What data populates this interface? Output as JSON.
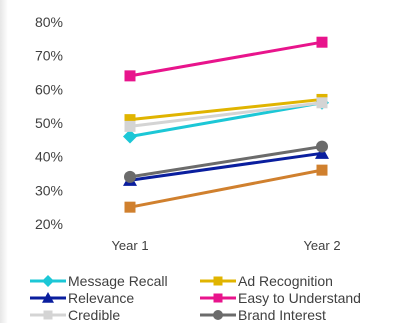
{
  "chart_data": {
    "type": "line",
    "categories": [
      "Year 1",
      "Year 2"
    ],
    "ylim": [
      0.2,
      0.8
    ],
    "yticks": [
      "20%",
      "30%",
      "40%",
      "50%",
      "60%",
      "70%",
      "80%"
    ],
    "grid": false,
    "legend_position": "bottom",
    "series": [
      {
        "name": "Message Recall",
        "values": [
          0.46,
          0.56
        ],
        "color": "#1CC7D6",
        "marker": "diamond"
      },
      {
        "name": "Ad Recognition",
        "values": [
          0.51,
          0.57
        ],
        "color": "#E0B400",
        "marker": "square"
      },
      {
        "name": "Relevance",
        "values": [
          0.33,
          0.41
        ],
        "color": "#0A1E9E",
        "marker": "triangle"
      },
      {
        "name": "Easy to Understand",
        "values": [
          0.64,
          0.74
        ],
        "color": "#E8148C",
        "marker": "square"
      },
      {
        "name": "Credible",
        "values": [
          0.49,
          0.56
        ],
        "color": "#D4D4D4",
        "marker": "square"
      },
      {
        "name": "Brand Interest",
        "values": [
          0.34,
          0.43
        ],
        "color": "#6B6B6B",
        "marker": "circle"
      },
      {
        "name": "",
        "values": [
          0.25,
          0.36
        ],
        "color": "#D0802E",
        "marker": "square"
      }
    ]
  }
}
